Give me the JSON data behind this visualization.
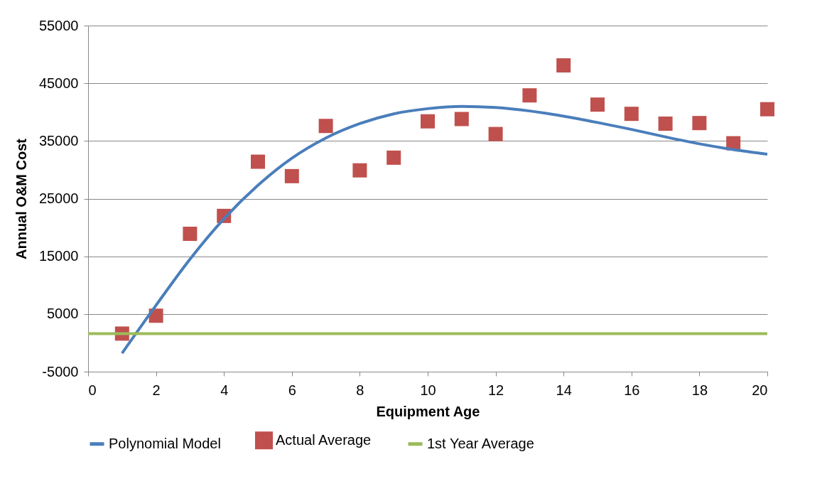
{
  "chart_data": {
    "type": "scatter",
    "xlabel": "Equipment Age",
    "ylabel": "Annual O&M Cost",
    "xlim": [
      0,
      20
    ],
    "xticks": [
      0,
      2,
      4,
      6,
      8,
      10,
      12,
      14,
      16,
      18,
      20
    ],
    "ylim": [
      -5000,
      55000
    ],
    "yticks": [
      -5000,
      5000,
      15000,
      25000,
      35000,
      45000,
      55000
    ],
    "grid": "y",
    "legend": "bottom",
    "series": [
      {
        "name": "Polynomial Model",
        "type": "line",
        "color": "#4a7ebb",
        "x": [
          1,
          2,
          3,
          4,
          5,
          6,
          7,
          8,
          9,
          10,
          11,
          12,
          13,
          14,
          15,
          16,
          17,
          18,
          19,
          20
        ],
        "values": [
          -1800,
          6500,
          14500,
          21500,
          27300,
          32000,
          35500,
          38000,
          39700,
          40600,
          41000,
          40800,
          40200,
          39300,
          38200,
          37000,
          35700,
          34500,
          33500,
          32700
        ]
      },
      {
        "name": "Actual Average",
        "marker": "square",
        "color": "#c0504d",
        "x": [
          1,
          2,
          3,
          4,
          5,
          6,
          7,
          8,
          9,
          10,
          11,
          12,
          13,
          14,
          15,
          16,
          17,
          18,
          19,
          20
        ],
        "values": [
          1600,
          4700,
          18900,
          22000,
          31400,
          28900,
          37600,
          29900,
          32100,
          38400,
          38800,
          36200,
          42900,
          48100,
          41300,
          39700,
          38000,
          38100,
          34600,
          40500
        ]
      },
      {
        "name": "1st Year Average",
        "type": "line",
        "color": "#9bbb59",
        "x": [
          0,
          20
        ],
        "values": [
          1600,
          1600
        ]
      }
    ]
  }
}
